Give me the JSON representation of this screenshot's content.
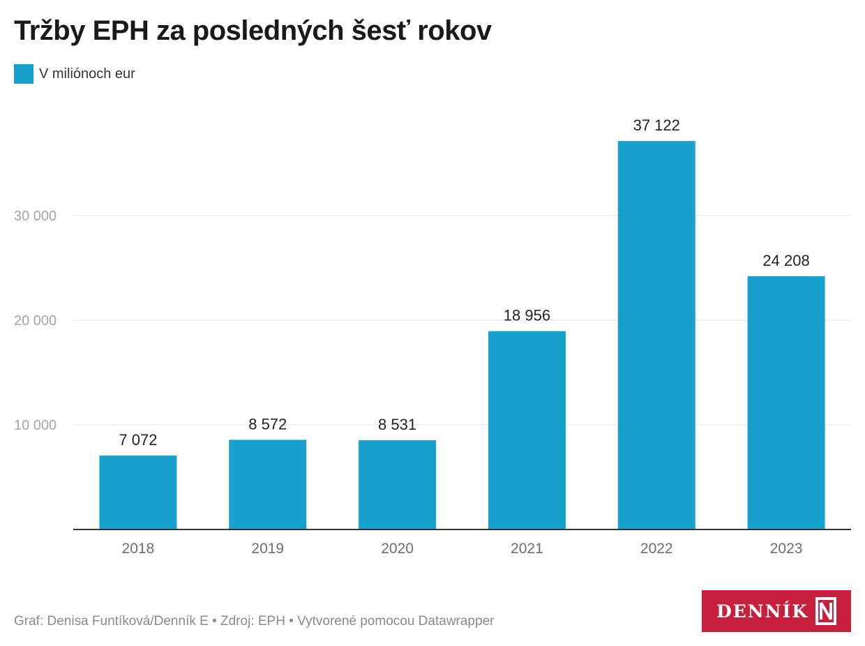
{
  "header": {
    "title": "Tržby EPH za posledných šesť rokov"
  },
  "legend": {
    "label": "V miliónoch eur",
    "color": "#18a1cd"
  },
  "chart_data": {
    "type": "bar",
    "categories": [
      "2018",
      "2019",
      "2020",
      "2021",
      "2022",
      "2023"
    ],
    "values": [
      7072,
      8572,
      8531,
      18956,
      37122,
      24208
    ],
    "value_labels": [
      "7 072",
      "8 572",
      "8 531",
      "18 956",
      "37 122",
      "24 208"
    ],
    "series": [
      {
        "name": "V miliónoch eur",
        "values": [
          7072,
          8572,
          8531,
          18956,
          37122,
          24208
        ]
      }
    ],
    "ylim": [
      0,
      40000
    ],
    "yticks": [
      10000,
      20000,
      30000
    ],
    "ytick_labels": [
      "10 000",
      "20 000",
      "30 000"
    ],
    "xlabel": "",
    "ylabel": "",
    "grid": true,
    "legend_position": "top-left",
    "bar_color": "#18a1cd"
  },
  "footer": {
    "credit": "Graf: Denisa Funtíková/Denník E • Zdroj: EPH • Vytvorené pomocou Datawrapper"
  },
  "logo": {
    "text": "DENNÍK",
    "mark": "N",
    "color": "#c8203c"
  }
}
